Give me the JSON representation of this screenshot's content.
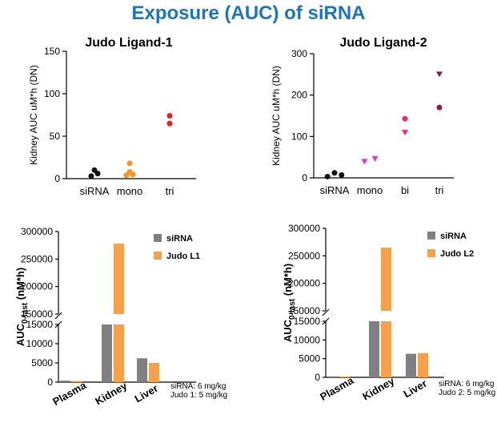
{
  "page_title": "Exposure (AUC) of siRNA",
  "colors": {
    "title": "#1b75bb",
    "sirna_point": "#111111",
    "mono_point_1": "#f7941d",
    "tri_point_1": "#ed1c24",
    "mono_point_2": "#e62ee6",
    "bi_point_2": "#f0287a",
    "tri_point_2": "#8b1a4a",
    "bar_sirna": "#808080",
    "bar_judo": "#f7a04b"
  },
  "chart_data": [
    {
      "type": "scatter",
      "title": "Judo Ligand-1",
      "ylabel": "Kidney AUC uM*h (DN)",
      "ylim": [
        0,
        150
      ],
      "yticks": [
        "0",
        "50",
        "100",
        "150"
      ],
      "categories": [
        "siRNA",
        "mono",
        "tri"
      ],
      "series": [
        {
          "name": "siRNA",
          "points": [
            [
              -0.2,
              3
            ],
            [
              0,
              10
            ],
            [
              0.2,
              6
            ]
          ]
        },
        {
          "name": "mono",
          "points": [
            [
              0.8,
              4
            ],
            [
              1,
              18
            ],
            [
              1.2,
              5
            ],
            [
              1,
              8
            ]
          ]
        },
        {
          "name": "tri",
          "points": [
            [
              2,
              74
            ],
            [
              2,
              65
            ]
          ]
        }
      ]
    },
    {
      "type": "scatter",
      "title": "Judo Ligand-2",
      "ylabel": "Kidney AUC uM*h (DN)",
      "ylim": [
        0,
        300
      ],
      "yticks": [
        "0",
        "100",
        "200",
        "300"
      ],
      "categories": [
        "siRNA",
        "mono",
        "bi",
        "tri"
      ],
      "series": [
        {
          "name": "siRNA",
          "points": [
            [
              -0.2,
              3
            ],
            [
              0,
              12
            ],
            [
              0.2,
              7
            ]
          ]
        },
        {
          "name": "mono",
          "points": [
            [
              0.85,
              40
            ],
            [
              1.15,
              47
            ]
          ]
        },
        {
          "name": "bi",
          "points": [
            [
              2,
              143
            ],
            [
              2,
              110
            ]
          ]
        },
        {
          "name": "tri",
          "points": [
            [
              3,
              251
            ],
            [
              3,
              170
            ]
          ]
        }
      ]
    },
    {
      "type": "bar",
      "ylabel_main": "AUC",
      "ylabel_sub": "0-last",
      "ylabel_unit": " (nM*h)",
      "categories": [
        "Plasma",
        "Kidney",
        "Liver"
      ],
      "upper_range": [
        150000,
        300000
      ],
      "lower_range": [
        0,
        15000
      ],
      "upper_ticks": [
        "150000",
        "200000",
        "250000",
        "300000"
      ],
      "lower_ticks": [
        "0",
        "5000",
        "10000",
        "15000"
      ],
      "series": [
        {
          "name": "siRNA",
          "values": [
            400,
            15000,
            6200
          ]
        },
        {
          "name": "Judo L1",
          "values": [
            300,
            278000,
            5000
          ]
        }
      ],
      "note": [
        "siRNA: 6 mg/kg",
        "Judo 1: 5 mg/kg"
      ]
    },
    {
      "type": "bar",
      "ylabel_main": "AUC",
      "ylabel_sub": "0-last",
      "ylabel_unit": " (nM*h)",
      "categories": [
        "Plasma",
        "Kidney",
        "Liver"
      ],
      "upper_range": [
        150000,
        300000
      ],
      "lower_range": [
        0,
        15000
      ],
      "upper_ticks": [
        "150000",
        "200000",
        "250000",
        "300000"
      ],
      "lower_ticks": [
        "0",
        "5000",
        "10000",
        "15000"
      ],
      "series": [
        {
          "name": "siRNA",
          "values": [
            250,
            15000,
            6300
          ]
        },
        {
          "name": "Judo L2",
          "values": [
            200,
            265000,
            6500
          ]
        }
      ],
      "note": [
        "siRNA: 6 mg/kg",
        "Judo 2: 5 mg/kg"
      ]
    }
  ]
}
